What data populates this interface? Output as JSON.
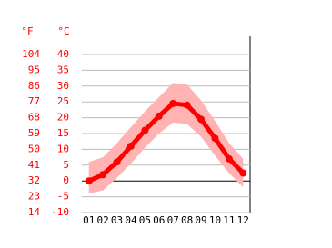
{
  "chart_data": {
    "type": "line",
    "y2_header": "°F",
    "y_header": "°C",
    "categories": [
      "01",
      "02",
      "03",
      "04",
      "05",
      "06",
      "07",
      "08",
      "09",
      "10",
      "11",
      "12"
    ],
    "series": [
      {
        "color": "#ff0000",
        "values": [
          0,
          2,
          6,
          11,
          16,
          20.5,
          24.5,
          24,
          19.5,
          13.5,
          7,
          2.5
        ]
      }
    ],
    "range": {
      "color": "#ffb3b3",
      "high": [
        6,
        7.5,
        12,
        17,
        22,
        26.5,
        31,
        30.5,
        25.5,
        19,
        12,
        7
      ],
      "low": [
        -4,
        -3,
        1,
        5.5,
        10.5,
        15,
        18.5,
        18,
        14,
        8,
        2.5,
        -2
      ]
    },
    "ylim": [
      -10,
      40
    ],
    "yticks": [
      -10,
      -5,
      0,
      5,
      10,
      15,
      20,
      25,
      30,
      35,
      40
    ],
    "y2lim": [
      14,
      104
    ],
    "y2ticks": [
      14,
      23,
      32,
      41,
      50,
      59,
      68,
      77,
      86,
      95,
      104
    ],
    "grid": true,
    "tick_color": "#ff0000"
  }
}
